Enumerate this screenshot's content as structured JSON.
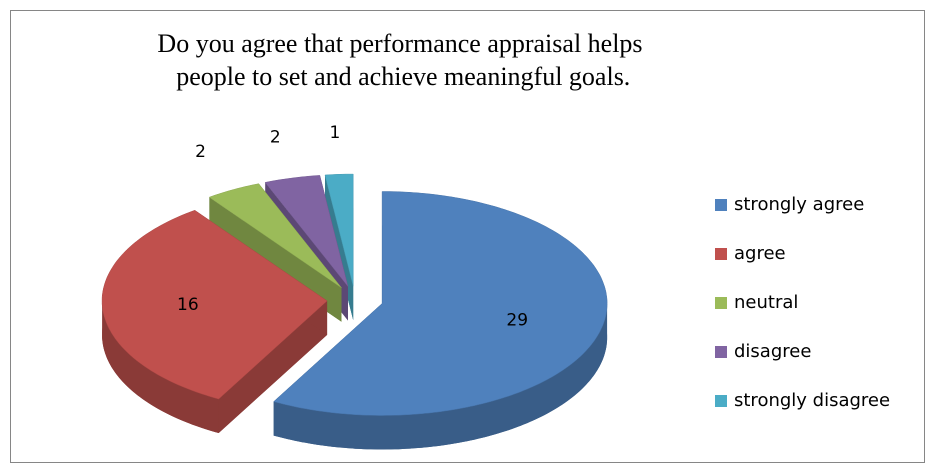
{
  "chart_data": {
    "type": "pie3d",
    "title": "Do you agree that performance appraisal helps people to set and achieve meaningful goals.",
    "categories": [
      "strongly agree",
      "agree",
      "neutral",
      "disagree",
      "strongly disagree"
    ],
    "values": [
      29,
      16,
      2,
      2,
      1
    ],
    "colors": [
      "#4f81bd",
      "#c0504d",
      "#9bbb59",
      "#8064a2",
      "#4bacc6"
    ],
    "legend": "right"
  }
}
